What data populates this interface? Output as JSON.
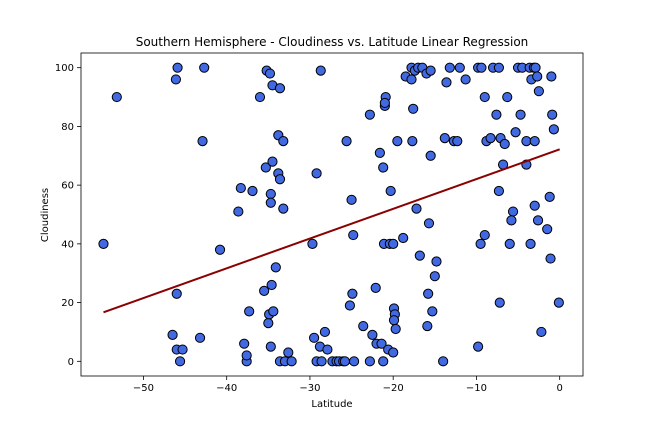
{
  "chart_data": {
    "type": "scatter",
    "title": "Southern Hemisphere - Cloudiness vs. Latitude Linear Regression",
    "xlabel": "Latitude",
    "ylabel": "Cloudiness",
    "xlim": [
      -57.5,
      2.8
    ],
    "ylim": [
      -5,
      105
    ],
    "xticks": [
      -50,
      -40,
      -30,
      -20,
      -10,
      0
    ],
    "yticks": [
      0,
      20,
      40,
      60,
      80,
      100
    ],
    "grid": false,
    "colors": {
      "point_fill": "#4169e1",
      "point_edge": "#000000",
      "regression_line": "#8b0000"
    },
    "regression": {
      "x": [
        -54.8,
        0
      ],
      "y": [
        16.7,
        72.2
      ]
    },
    "points": [
      [
        -54.8,
        40
      ],
      [
        -53.2,
        90
      ],
      [
        -46.1,
        96
      ],
      [
        -45.9,
        100
      ],
      [
        -42.7,
        100
      ],
      [
        -42.9,
        75
      ],
      [
        -46.5,
        9
      ],
      [
        -46.0,
        23
      ],
      [
        -46.0,
        4
      ],
      [
        -45.6,
        0
      ],
      [
        -45.3,
        4
      ],
      [
        -43.2,
        8
      ],
      [
        -40.8,
        38
      ],
      [
        -38.6,
        51
      ],
      [
        -38.3,
        59
      ],
      [
        -37.9,
        6
      ],
      [
        -37.6,
        0
      ],
      [
        -37.6,
        2
      ],
      [
        -37.3,
        17
      ],
      [
        -36.9,
        58
      ],
      [
        -36.0,
        90
      ],
      [
        -35.2,
        99
      ],
      [
        -34.8,
        98
      ],
      [
        -34.5,
        94
      ],
      [
        -35.3,
        66
      ],
      [
        -34.5,
        68
      ],
      [
        -34.7,
        57
      ],
      [
        -34.7,
        54
      ],
      [
        -33.6,
        93
      ],
      [
        -33.8,
        77
      ],
      [
        -33.2,
        75
      ],
      [
        -33.8,
        64
      ],
      [
        -33.6,
        62
      ],
      [
        -33.2,
        52
      ],
      [
        -35.5,
        24
      ],
      [
        -35.0,
        13
      ],
      [
        -34.9,
        16
      ],
      [
        -34.4,
        17
      ],
      [
        -34.6,
        26
      ],
      [
        -34.1,
        32
      ],
      [
        -34.7,
        5
      ],
      [
        -33.6,
        0
      ],
      [
        -33.0,
        0
      ],
      [
        -32.6,
        3
      ],
      [
        -32.2,
        0
      ],
      [
        -29.2,
        64
      ],
      [
        -28.7,
        99
      ],
      [
        -29.7,
        40
      ],
      [
        -29.5,
        8
      ],
      [
        -28.8,
        5
      ],
      [
        -28.2,
        10
      ],
      [
        -27.9,
        4
      ],
      [
        -29.2,
        0
      ],
      [
        -28.6,
        0
      ],
      [
        -27.3,
        0
      ],
      [
        -26.8,
        0
      ],
      [
        -26.5,
        0
      ],
      [
        -26.0,
        0
      ],
      [
        -25.8,
        0
      ],
      [
        -25.6,
        75
      ],
      [
        -25.0,
        55
      ],
      [
        -24.8,
        43
      ],
      [
        -24.9,
        23
      ],
      [
        -25.2,
        19
      ],
      [
        -23.6,
        12
      ],
      [
        -22.8,
        84
      ],
      [
        -22.1,
        25
      ],
      [
        -21.6,
        71
      ],
      [
        -21.2,
        66
      ],
      [
        -21.0,
        87
      ],
      [
        -20.9,
        90
      ],
      [
        -21.0,
        88
      ],
      [
        -20.3,
        58
      ],
      [
        -21.1,
        40
      ],
      [
        -20.4,
        40
      ],
      [
        -20.0,
        40
      ],
      [
        -22.5,
        9
      ],
      [
        -22.0,
        6
      ],
      [
        -21.4,
        6
      ],
      [
        -20.6,
        4
      ],
      [
        -20.0,
        3
      ],
      [
        -19.9,
        18
      ],
      [
        -19.8,
        16
      ],
      [
        -19.9,
        14
      ],
      [
        -19.7,
        11
      ],
      [
        -21.2,
        0
      ],
      [
        -22.8,
        0
      ],
      [
        -24.7,
        0
      ],
      [
        -18.5,
        97
      ],
      [
        -17.8,
        100
      ],
      [
        -17.8,
        96
      ],
      [
        -17.4,
        99
      ],
      [
        -17.0,
        100
      ],
      [
        -16.5,
        100
      ],
      [
        -16.0,
        98
      ],
      [
        -15.5,
        99
      ],
      [
        -17.6,
        86
      ],
      [
        -19.5,
        75
      ],
      [
        -17.7,
        75
      ],
      [
        -17.2,
        52
      ],
      [
        -16.8,
        36
      ],
      [
        -18.8,
        42
      ],
      [
        -15.5,
        70
      ],
      [
        -15.7,
        47
      ],
      [
        -15.3,
        17
      ],
      [
        -15.0,
        29
      ],
      [
        -14.8,
        34
      ],
      [
        -15.8,
        23
      ],
      [
        -15.9,
        12
      ],
      [
        -14.0,
        0
      ],
      [
        -13.8,
        76
      ],
      [
        -13.6,
        95
      ],
      [
        -13.2,
        100
      ],
      [
        -12.7,
        75
      ],
      [
        -12.3,
        75
      ],
      [
        -12.0,
        100
      ],
      [
        -11.3,
        96
      ],
      [
        -9.8,
        100
      ],
      [
        -9.4,
        100
      ],
      [
        -9.0,
        90
      ],
      [
        -8.8,
        75
      ],
      [
        -8.3,
        76
      ],
      [
        -8.0,
        100
      ],
      [
        -7.6,
        84
      ],
      [
        -7.3,
        100
      ],
      [
        -7.1,
        76
      ],
      [
        -6.8,
        67
      ],
      [
        -6.6,
        74
      ],
      [
        -6.3,
        90
      ],
      [
        -7.3,
        58
      ],
      [
        -7.2,
        20
      ],
      [
        -9.5,
        40
      ],
      [
        -9.0,
        43
      ],
      [
        -9.8,
        5
      ],
      [
        -5.6,
        51
      ],
      [
        -5.8,
        48
      ],
      [
        -6.0,
        40
      ],
      [
        -5.3,
        78
      ],
      [
        -5.0,
        100
      ],
      [
        -4.5,
        100
      ],
      [
        -4.7,
        84
      ],
      [
        -4.0,
        75
      ],
      [
        -3.6,
        100
      ],
      [
        -3.4,
        96
      ],
      [
        -3.1,
        100
      ],
      [
        -2.9,
        100
      ],
      [
        -2.7,
        97
      ],
      [
        -2.5,
        92
      ],
      [
        -3.0,
        75
      ],
      [
        -3.5,
        40
      ],
      [
        -4.0,
        67
      ],
      [
        -3.0,
        53
      ],
      [
        -2.6,
        48
      ],
      [
        -2.2,
        10
      ],
      [
        -1.5,
        45
      ],
      [
        -1.2,
        56
      ],
      [
        -1.1,
        35
      ],
      [
        -0.9,
        84
      ],
      [
        -0.7,
        79
      ],
      [
        -1.0,
        97
      ],
      [
        -0.1,
        20
      ]
    ]
  }
}
